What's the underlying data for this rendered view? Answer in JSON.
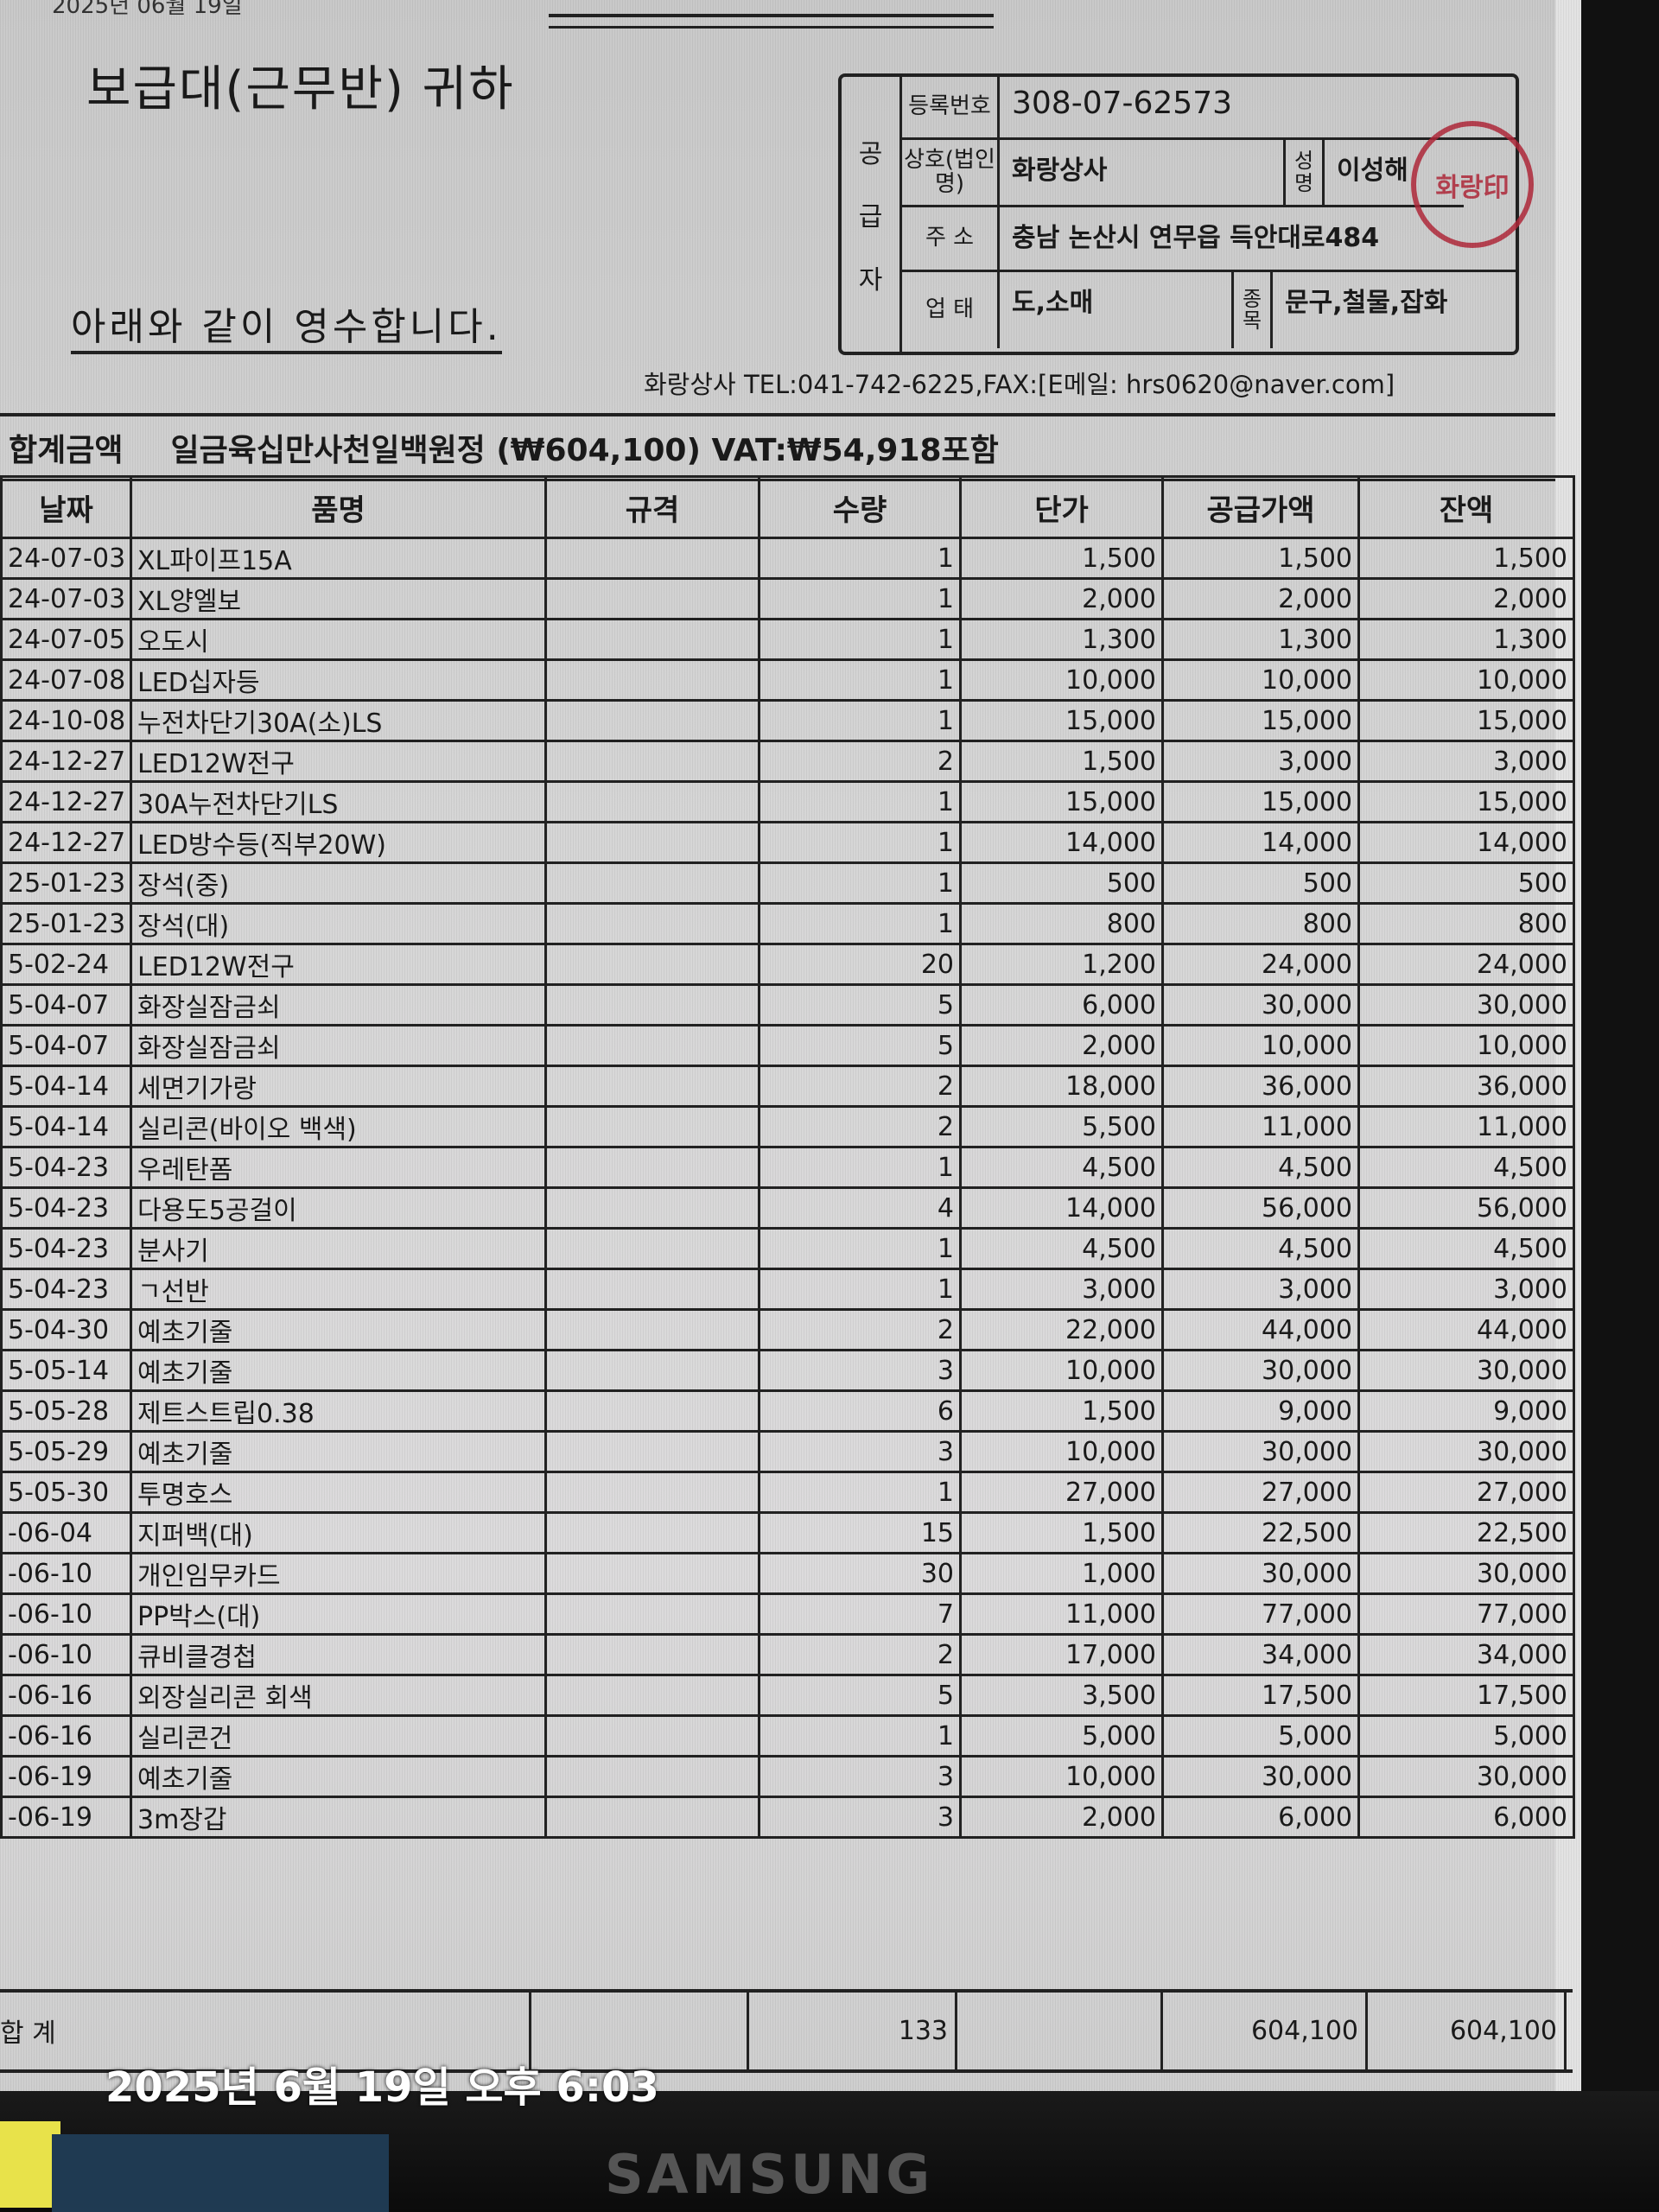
{
  "header": {
    "top_text": "2025년 06월 19일",
    "recipient": "보급대(근무반)   귀하",
    "received_text": "아래와 같이 영수합니다."
  },
  "supplier": {
    "side_label": [
      "공",
      "급",
      "자"
    ],
    "reg_label": "등록번호",
    "reg_no": "308-07-62573",
    "name_label": "상호(법인명)",
    "name": "화랑상사",
    "rep_label": "성명",
    "rep": "이성해",
    "addr_label": "주 소",
    "address": "충남 논산시 연무읍 득안대로484",
    "biz_label": "업 태",
    "biz_type": "도,소매",
    "item_label": "종목",
    "biz_item": "문구,철물,잡화",
    "stamp_text": "화랑印",
    "stamp_color": "#b0283a",
    "contact": "화랑상사 TEL:041-742-6225,FAX:[E메일: hrs0620@naver.com]"
  },
  "total": {
    "label": "합계금액",
    "text": "일금육십만사천일백원정 (₩604,100) VAT:₩54,918포함"
  },
  "table": {
    "columns": [
      "날짜",
      "품명",
      "규격",
      "수량",
      "단가",
      "공급가액",
      "잔액"
    ],
    "rows": [
      [
        "24-07-03",
        "XL파이프15A",
        "",
        "1",
        "1,500",
        "1,500",
        "1,500"
      ],
      [
        "24-07-03",
        "XL양엘보",
        "",
        "1",
        "2,000",
        "2,000",
        "2,000"
      ],
      [
        "24-07-05",
        "오도시",
        "",
        "1",
        "1,300",
        "1,300",
        "1,300"
      ],
      [
        "24-07-08",
        "LED십자등",
        "",
        "1",
        "10,000",
        "10,000",
        "10,000"
      ],
      [
        "24-10-08",
        "누전차단기30A(소)LS",
        "",
        "1",
        "15,000",
        "15,000",
        "15,000"
      ],
      [
        "24-12-27",
        "LED12W전구",
        "",
        "2",
        "1,500",
        "3,000",
        "3,000"
      ],
      [
        "24-12-27",
        "30A누전차단기LS",
        "",
        "1",
        "15,000",
        "15,000",
        "15,000"
      ],
      [
        "24-12-27",
        "LED방수등(직부20W)",
        "",
        "1",
        "14,000",
        "14,000",
        "14,000"
      ],
      [
        "25-01-23",
        "장석(중)",
        "",
        "1",
        "500",
        "500",
        "500"
      ],
      [
        "25-01-23",
        "장석(대)",
        "",
        "1",
        "800",
        "800",
        "800"
      ],
      [
        "5-02-24",
        "LED12W전구",
        "",
        "20",
        "1,200",
        "24,000",
        "24,000"
      ],
      [
        "5-04-07",
        "화장실잠금쇠",
        "",
        "5",
        "6,000",
        "30,000",
        "30,000"
      ],
      [
        "5-04-07",
        "화장실잠금쇠",
        "",
        "5",
        "2,000",
        "10,000",
        "10,000"
      ],
      [
        "5-04-14",
        "세면기가랑",
        "",
        "2",
        "18,000",
        "36,000",
        "36,000"
      ],
      [
        "5-04-14",
        "실리콘(바이오 백색)",
        "",
        "2",
        "5,500",
        "11,000",
        "11,000"
      ],
      [
        "5-04-23",
        "우레탄폼",
        "",
        "1",
        "4,500",
        "4,500",
        "4,500"
      ],
      [
        "5-04-23",
        "다용도5공걸이",
        "",
        "4",
        "14,000",
        "56,000",
        "56,000"
      ],
      [
        "5-04-23",
        "분사기",
        "",
        "1",
        "4,500",
        "4,500",
        "4,500"
      ],
      [
        "5-04-23",
        "ㄱ선반",
        "",
        "1",
        "3,000",
        "3,000",
        "3,000"
      ],
      [
        "5-04-30",
        "예초기줄",
        "",
        "2",
        "22,000",
        "44,000",
        "44,000"
      ],
      [
        "5-05-14",
        "예초기줄",
        "",
        "3",
        "10,000",
        "30,000",
        "30,000"
      ],
      [
        "5-05-28",
        "제트스트립0.38",
        "",
        "6",
        "1,500",
        "9,000",
        "9,000"
      ],
      [
        "5-05-29",
        "예초기줄",
        "",
        "3",
        "10,000",
        "30,000",
        "30,000"
      ],
      [
        "5-05-30",
        "투명호스",
        "",
        "1",
        "27,000",
        "27,000",
        "27,000"
      ],
      [
        "-06-04",
        "지퍼백(대)",
        "",
        "15",
        "1,500",
        "22,500",
        "22,500"
      ],
      [
        "-06-10",
        "개인임무카드",
        "",
        "30",
        "1,000",
        "30,000",
        "30,000"
      ],
      [
        "-06-10",
        "PP박스(대)",
        "",
        "7",
        "11,000",
        "77,000",
        "77,000"
      ],
      [
        "-06-10",
        "큐비클경첩",
        "",
        "2",
        "17,000",
        "34,000",
        "34,000"
      ],
      [
        "-06-16",
        "외장실리콘 회색",
        "",
        "5",
        "3,500",
        "17,500",
        "17,500"
      ],
      [
        "-06-16",
        "실리콘건",
        "",
        "1",
        "5,000",
        "5,000",
        "5,000"
      ],
      [
        "-06-19",
        "예초기줄",
        "",
        "3",
        "10,000",
        "30,000",
        "30,000"
      ],
      [
        "-06-19",
        "3m장갑",
        "",
        "3",
        "2,000",
        "6,000",
        "6,000"
      ]
    ]
  },
  "summary": {
    "label": "합  계",
    "qty": "133",
    "supply": "604,100",
    "balance": "604,100"
  },
  "photo": {
    "timestamp": "2025년 6월 19일 오후 6:03",
    "monitor_brand": "SAMSUNG"
  }
}
